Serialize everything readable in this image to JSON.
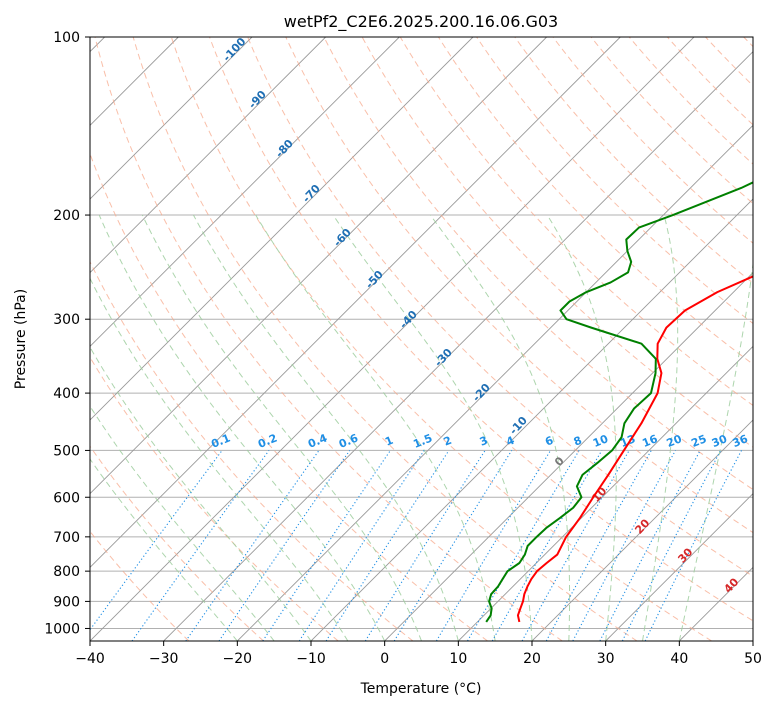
{
  "chart_data": {
    "type": "line",
    "subtype": "skew-T log-P diagram",
    "title": "wetPf2_C2E6.2025.200.16.06.G03",
    "xlabel": "Temperature (°C)",
    "ylabel": "Pressure (hPa)",
    "xlim": [
      -40,
      50
    ],
    "ylim": [
      1050,
      100
    ],
    "y_scale": "log",
    "grid": true,
    "x_ticks": [
      "−40",
      "−30",
      "−20",
      "−10",
      "0",
      "10",
      "20",
      "30",
      "40",
      "50"
    ],
    "y_ticks": [
      "100",
      "200",
      "300",
      "400",
      "500",
      "600",
      "700",
      "800",
      "900",
      "1000"
    ],
    "series": [
      {
        "name": "",
        "color": "#ff0000",
        "pressure": [
          975,
          950,
          925,
          900,
          875,
          850,
          825,
          800,
          775,
          750,
          700,
          650,
          600,
          550,
          500,
          450,
          400,
          370,
          350,
          330,
          310,
          290,
          270,
          250,
          230,
          210,
          200,
          180,
          160,
          140,
          130,
          120,
          110,
          105,
          100
        ],
        "values": [
          15.7,
          14.6,
          14.0,
          13.4,
          12.6,
          12.0,
          11.5,
          11.2,
          11.4,
          11.7,
          10.5,
          9.8,
          8.8,
          7.8,
          6.6,
          5.3,
          3.4,
          1.2,
          -1.3,
          -3.3,
          -4.3,
          -4.1,
          -2.2,
          1.2,
          4.6,
          8.2,
          9.1,
          10.0,
          11.2,
          12.6,
          13.4,
          14.4,
          16.9,
          19.6,
          22.8
        ]
      },
      {
        "name": "",
        "color": "#008000",
        "pressure": [
          975,
          950,
          925,
          900,
          875,
          850,
          825,
          800,
          775,
          750,
          725,
          700,
          675,
          650,
          625,
          600,
          575,
          550,
          525,
          500,
          475,
          450,
          425,
          400,
          370,
          350,
          330,
          310,
          300,
          290,
          280,
          270,
          260,
          250,
          240,
          230,
          220,
          210,
          200,
          180,
          160,
          140,
          130,
          120,
          110,
          105,
          100
        ],
        "values": [
          11.2,
          10.9,
          10.1,
          8.8,
          8.1,
          8.0,
          7.6,
          7.2,
          7.7,
          7.3,
          6.5,
          6.5,
          6.6,
          7.1,
          7.5,
          7.2,
          5.1,
          4.3,
          4.7,
          5.0,
          4.5,
          3.0,
          2.3,
          2.5,
          0.4,
          -1.5,
          -5.5,
          -14.5,
          -19.0,
          -21.0,
          -21.0,
          -20.0,
          -18.0,
          -17.0,
          -18.0,
          -20.0,
          -21.7,
          -21.6,
          -18.7,
          -13.1,
          -8.5,
          -6.0,
          -5.3,
          -3.2,
          -0.3,
          -0.1,
          0.1
        ]
      }
    ],
    "dry_adiabat_labels": [
      "-100",
      "-90",
      "-80",
      "-70",
      "-60",
      "-50",
      "-40",
      "-30",
      "-20",
      "-10",
      "0",
      "10",
      "20",
      "30",
      "40"
    ],
    "mixing_ratio_labels": [
      "0.1",
      "0.2",
      "0.4",
      "0.6",
      "1",
      "1.5",
      "2",
      "3",
      "4",
      "6",
      "8",
      "10",
      "13",
      "16",
      "20",
      "25",
      "30",
      "36"
    ],
    "colors": {
      "temperature": "#ff0000",
      "dewpoint": "#008000",
      "isotherm": "#999999",
      "isobar": "#b0b0b0",
      "dry_adiabat": "#f7a98c",
      "moist_adiabat": "#9fce9f",
      "mixing_ratio": "#1f8fe5",
      "dry_label": "#1f6fb4",
      "warm_label": "#d62728",
      "zero_label": "#777777"
    }
  }
}
